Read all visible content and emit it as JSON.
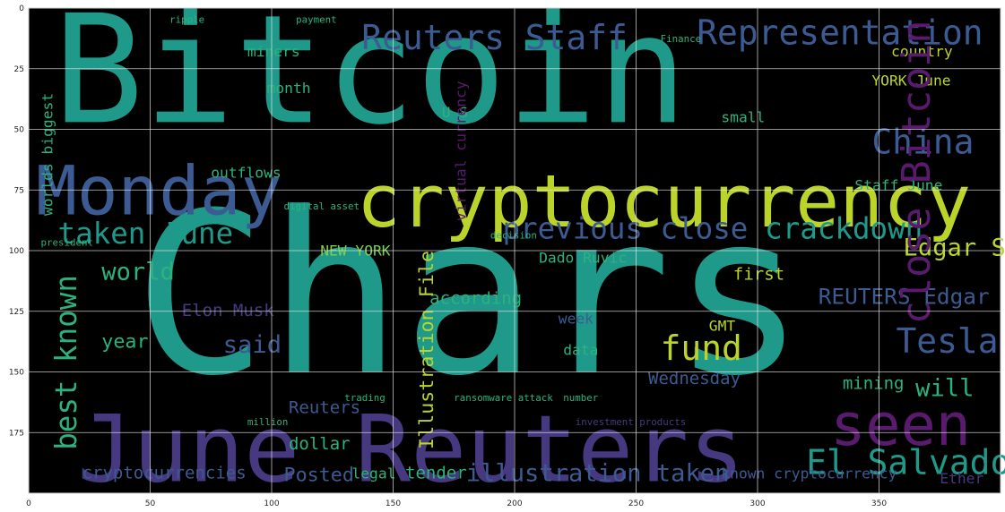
{
  "figure": {
    "background_color": "#ffffff",
    "frame_color": "#cfcfcf",
    "grid_color": "#e6e6e6",
    "plot_background": "#000000"
  },
  "axes": {
    "x_ticks": [
      "0",
      "50",
      "100",
      "150",
      "200",
      "250",
      "300",
      "350"
    ],
    "x_tick_values": [
      0,
      50,
      100,
      150,
      200,
      250,
      300,
      350
    ],
    "y_ticks": [
      "0",
      "25",
      "50",
      "75",
      "100",
      "125",
      "150",
      "175"
    ],
    "y_tick_values": [
      0,
      25,
      50,
      75,
      100,
      125,
      150,
      175
    ],
    "x_range": [
      0,
      400
    ],
    "y_range": [
      0,
      200
    ],
    "grid": true
  },
  "palette": {
    "teal": "#1f9a8a",
    "blue": "#3b5b92",
    "indigo": "#46397f",
    "yellow": "#bcd42a",
    "green": "#2db27d",
    "purple": "#5a1a6e",
    "lime": "#7ad151"
  },
  "words": [
    {
      "text": "Bitcoin",
      "x": 10,
      "y": 47,
      "size": 62,
      "color": "teal"
    },
    {
      "text": "Chars",
      "x": 43,
      "y": 150,
      "size": 92,
      "color": "teal"
    },
    {
      "text": "June Reuters",
      "x": 20,
      "y": 195,
      "size": 38,
      "color": "indigo"
    },
    {
      "text": "cryptocurrency",
      "x": 135,
      "y": 90,
      "size": 30,
      "color": "yellow"
    },
    {
      "text": "Monday",
      "x": 3,
      "y": 85,
      "size": 28,
      "color": "blue"
    },
    {
      "text": "seen",
      "x": 330,
      "y": 180,
      "size": 24,
      "color": "purple"
    },
    {
      "text": "Representation",
      "x": 275,
      "y": 15,
      "size": 14,
      "color": "blue"
    },
    {
      "text": "Reuters Staff",
      "x": 137,
      "y": 17,
      "size": 14,
      "color": "blue"
    },
    {
      "text": "China",
      "x": 347,
      "y": 60,
      "size": 14,
      "color": "blue"
    },
    {
      "text": "Tesla",
      "x": 357,
      "y": 142,
      "size": 14,
      "color": "blue"
    },
    {
      "text": "fund",
      "x": 260,
      "y": 145,
      "size": 14,
      "color": "yellow"
    },
    {
      "text": "El Salvador",
      "x": 320,
      "y": 192,
      "size": 14,
      "color": "teal"
    },
    {
      "text": "taken June",
      "x": 12,
      "y": 97,
      "size": 12,
      "color": "teal"
    },
    {
      "text": "previous close",
      "x": 195,
      "y": 95,
      "size": 12,
      "color": "blue"
    },
    {
      "text": "crackdown",
      "x": 303,
      "y": 95,
      "size": 12,
      "color": "teal"
    },
    {
      "text": "illustration taken",
      "x": 180,
      "y": 195,
      "size": 10,
      "color": "blue"
    },
    {
      "text": "said",
      "x": 80,
      "y": 142,
      "size": 10,
      "color": "blue"
    },
    {
      "text": "world",
      "x": 30,
      "y": 112,
      "size": 10,
      "color": "green"
    },
    {
      "text": "Edgar Su",
      "x": 360,
      "y": 102,
      "size": 10,
      "color": "yellow"
    },
    {
      "text": "REUTERS Edgar",
      "x": 325,
      "y": 122,
      "size": 9,
      "color": "blue"
    },
    {
      "text": "will",
      "x": 365,
      "y": 160,
      "size": 10,
      "color": "green"
    },
    {
      "text": "year",
      "x": 30,
      "y": 140,
      "size": 8,
      "color": "green"
    },
    {
      "text": "Posted",
      "x": 105,
      "y": 195,
      "size": 8,
      "color": "blue"
    },
    {
      "text": "dollar",
      "x": 107,
      "y": 182,
      "size": 7,
      "color": "green"
    },
    {
      "text": "according",
      "x": 165,
      "y": 122,
      "size": 7,
      "color": "green"
    },
    {
      "text": "Wednesday",
      "x": 255,
      "y": 155,
      "size": 7,
      "color": "blue"
    },
    {
      "text": "mining",
      "x": 335,
      "y": 157,
      "size": 7,
      "color": "green"
    },
    {
      "text": "cryptocurrencies",
      "x": 22,
      "y": 194,
      "size": 7,
      "color": "blue"
    },
    {
      "text": "Elon Musk",
      "x": 63,
      "y": 127,
      "size": 7,
      "color": "indigo"
    },
    {
      "text": "Reuters",
      "x": 107,
      "y": 167,
      "size": 7,
      "color": "blue"
    },
    {
      "text": "tender",
      "x": 155,
      "y": 194,
      "size": 7,
      "color": "green"
    },
    {
      "text": "legal",
      "x": 133,
      "y": 194,
      "size": 6,
      "color": "green"
    },
    {
      "text": "known cryptocurrency",
      "x": 285,
      "y": 194,
      "size": 6,
      "color": "blue"
    },
    {
      "text": "Dado Ruvic",
      "x": 210,
      "y": 105,
      "size": 6,
      "color": "green"
    },
    {
      "text": "first",
      "x": 290,
      "y": 112,
      "size": 7,
      "color": "yellow"
    },
    {
      "text": "month",
      "x": 98,
      "y": 35,
      "size": 6,
      "color": "green"
    },
    {
      "text": "miners",
      "x": 90,
      "y": 20,
      "size": 6,
      "color": "green"
    },
    {
      "text": "country",
      "x": 355,
      "y": 20,
      "size": 6,
      "color": "yellow"
    },
    {
      "text": "small",
      "x": 285,
      "y": 47,
      "size": 6,
      "color": "green"
    },
    {
      "text": "Staff June",
      "x": 340,
      "y": 75,
      "size": 6,
      "color": "green"
    },
    {
      "text": "outflows",
      "x": 75,
      "y": 70,
      "size": 6,
      "color": "green"
    },
    {
      "text": "NEW YORK",
      "x": 120,
      "y": 102,
      "size": 6,
      "color": "lime"
    },
    {
      "text": "week",
      "x": 218,
      "y": 130,
      "size": 6,
      "color": "blue"
    },
    {
      "text": "data",
      "x": 220,
      "y": 143,
      "size": 6,
      "color": "green"
    },
    {
      "text": "GMT",
      "x": 280,
      "y": 133,
      "size": 6,
      "color": "yellow"
    },
    {
      "text": "U S",
      "x": 170,
      "y": 45,
      "size": 6,
      "color": "green"
    },
    {
      "text": "YORK June",
      "x": 347,
      "y": 32,
      "size": 6,
      "color": "yellow"
    },
    {
      "text": "ripple",
      "x": 58,
      "y": 6,
      "size": 4,
      "color": "green"
    },
    {
      "text": "payment",
      "x": 110,
      "y": 6,
      "size": 4,
      "color": "green"
    },
    {
      "text": "Finance",
      "x": 260,
      "y": 14,
      "size": 4,
      "color": "green"
    },
    {
      "text": "digital asset",
      "x": 105,
      "y": 83,
      "size": 4,
      "color": "green"
    },
    {
      "text": "president",
      "x": 5,
      "y": 98,
      "size": 4,
      "color": "green"
    },
    {
      "text": "ransomware attack",
      "x": 175,
      "y": 162,
      "size": 4,
      "color": "green"
    },
    {
      "text": "investment products",
      "x": 225,
      "y": 172,
      "size": 4,
      "color": "indigo"
    },
    {
      "text": "million",
      "x": 90,
      "y": 172,
      "size": 4,
      "color": "green"
    },
    {
      "text": "trading",
      "x": 130,
      "y": 162,
      "size": 4,
      "color": "green"
    },
    {
      "text": "number",
      "x": 220,
      "y": 162,
      "size": 4,
      "color": "green"
    },
    {
      "text": "decision",
      "x": 190,
      "y": 95,
      "size": 4,
      "color": "green"
    },
    {
      "text": "Ether",
      "x": 375,
      "y": 196,
      "size": 6,
      "color": "indigo"
    }
  ],
  "vertical_words": [
    {
      "text": "close Bitcoin",
      "x": 358,
      "y": 5,
      "size": 16,
      "color": "purple"
    },
    {
      "text": "best known",
      "x": 10,
      "y": 110,
      "size": 12,
      "color": "green"
    },
    {
      "text": "Illustration File",
      "x": 160,
      "y": 100,
      "size": 8,
      "color": "yellow"
    },
    {
      "text": "worlds biggest",
      "x": 5,
      "y": 35,
      "size": 6,
      "color": "green"
    },
    {
      "text": "virtual currency",
      "x": 175,
      "y": 30,
      "size": 6,
      "color": "purple"
    }
  ]
}
